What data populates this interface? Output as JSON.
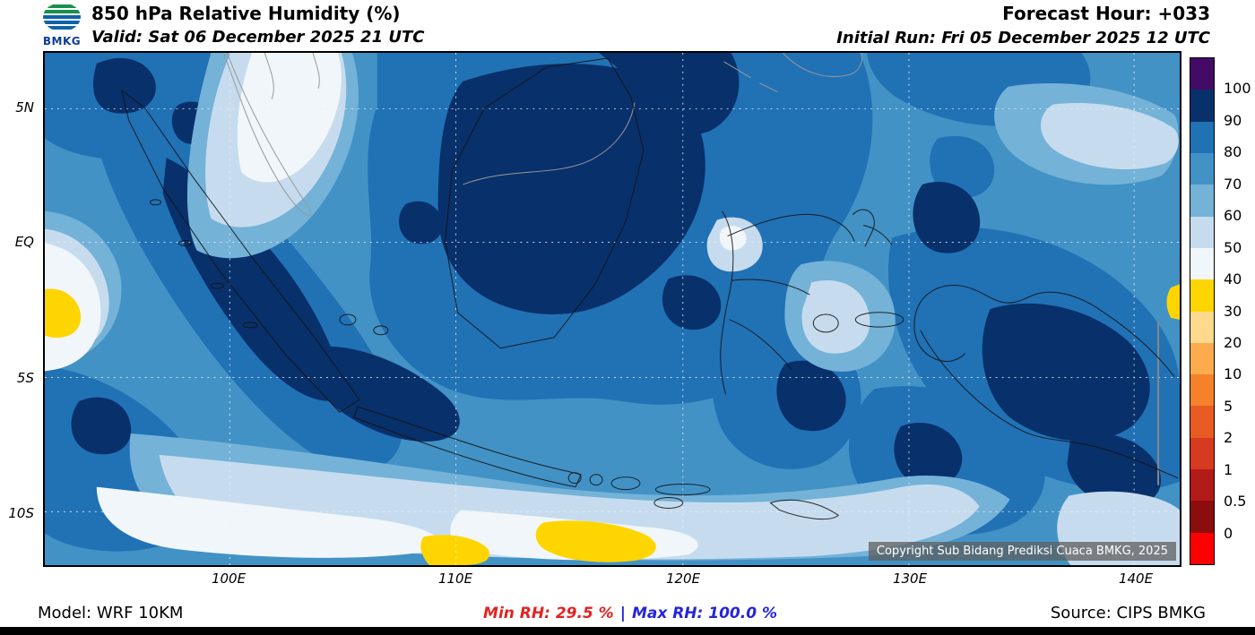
{
  "header": {
    "logo_text": "BMKG",
    "title": "850 hPa Relative Humidity (%)",
    "valid_line": "Valid: Sat 06 December 2025 21 UTC",
    "forecast_hour": "Forecast Hour: +033",
    "initial_run": "Initial Run: Fri 05 December 2025 12 UTC"
  },
  "map": {
    "copyright": "Copyright Sub Bidang Prediksi Cuaca BMKG, 2025",
    "y_tick_labels": [
      "5N",
      "EQ",
      "5S",
      "10S"
    ],
    "x_tick_labels": [
      "100E",
      "110E",
      "120E",
      "130E",
      "140E"
    ]
  },
  "colorbar": {
    "tick_labels": [
      "100",
      "90",
      "80",
      "70",
      "60",
      "50",
      "40",
      "30",
      "20",
      "10",
      "5",
      "2",
      "1",
      "0.5",
      "0"
    ],
    "segment_colors_top_to_bottom": [
      "#440a68",
      "#08306b",
      "#2171b5",
      "#4292c6",
      "#74b2d8",
      "#c6dcee",
      "#f1f6fa",
      "#ffd500",
      "#fed98e",
      "#fdab4d",
      "#f5822a",
      "#e85c23",
      "#d63a21",
      "#b31a1a",
      "#8c0d0d",
      "#ff0000"
    ]
  },
  "footer": {
    "model": "Model: WRF 10KM",
    "min_rh": "Min RH:  29.5 %",
    "separator": "|",
    "max_rh": "Max RH: 100.0 %",
    "source": "Source: CIPS BMKG",
    "min_rh_color": "#e32222",
    "max_rh_color": "#2424dd"
  },
  "chart_data": {
    "type": "heatmap",
    "title": "850 hPa Relative Humidity (%)",
    "units": "%",
    "lat_ticks": [
      "5N",
      "EQ",
      "5S",
      "10S"
    ],
    "lon_ticks": [
      "100E",
      "110E",
      "120E",
      "130E",
      "140E"
    ],
    "colorbar_levels": [
      100,
      90,
      80,
      70,
      60,
      50,
      40,
      30,
      20,
      10,
      5,
      2,
      1,
      0.5,
      0
    ],
    "min_rh_percent": 29.5,
    "max_rh_percent": 100.0,
    "forecast_hour": 33,
    "model": "WRF 10KM",
    "source": "CIPS BMKG"
  }
}
